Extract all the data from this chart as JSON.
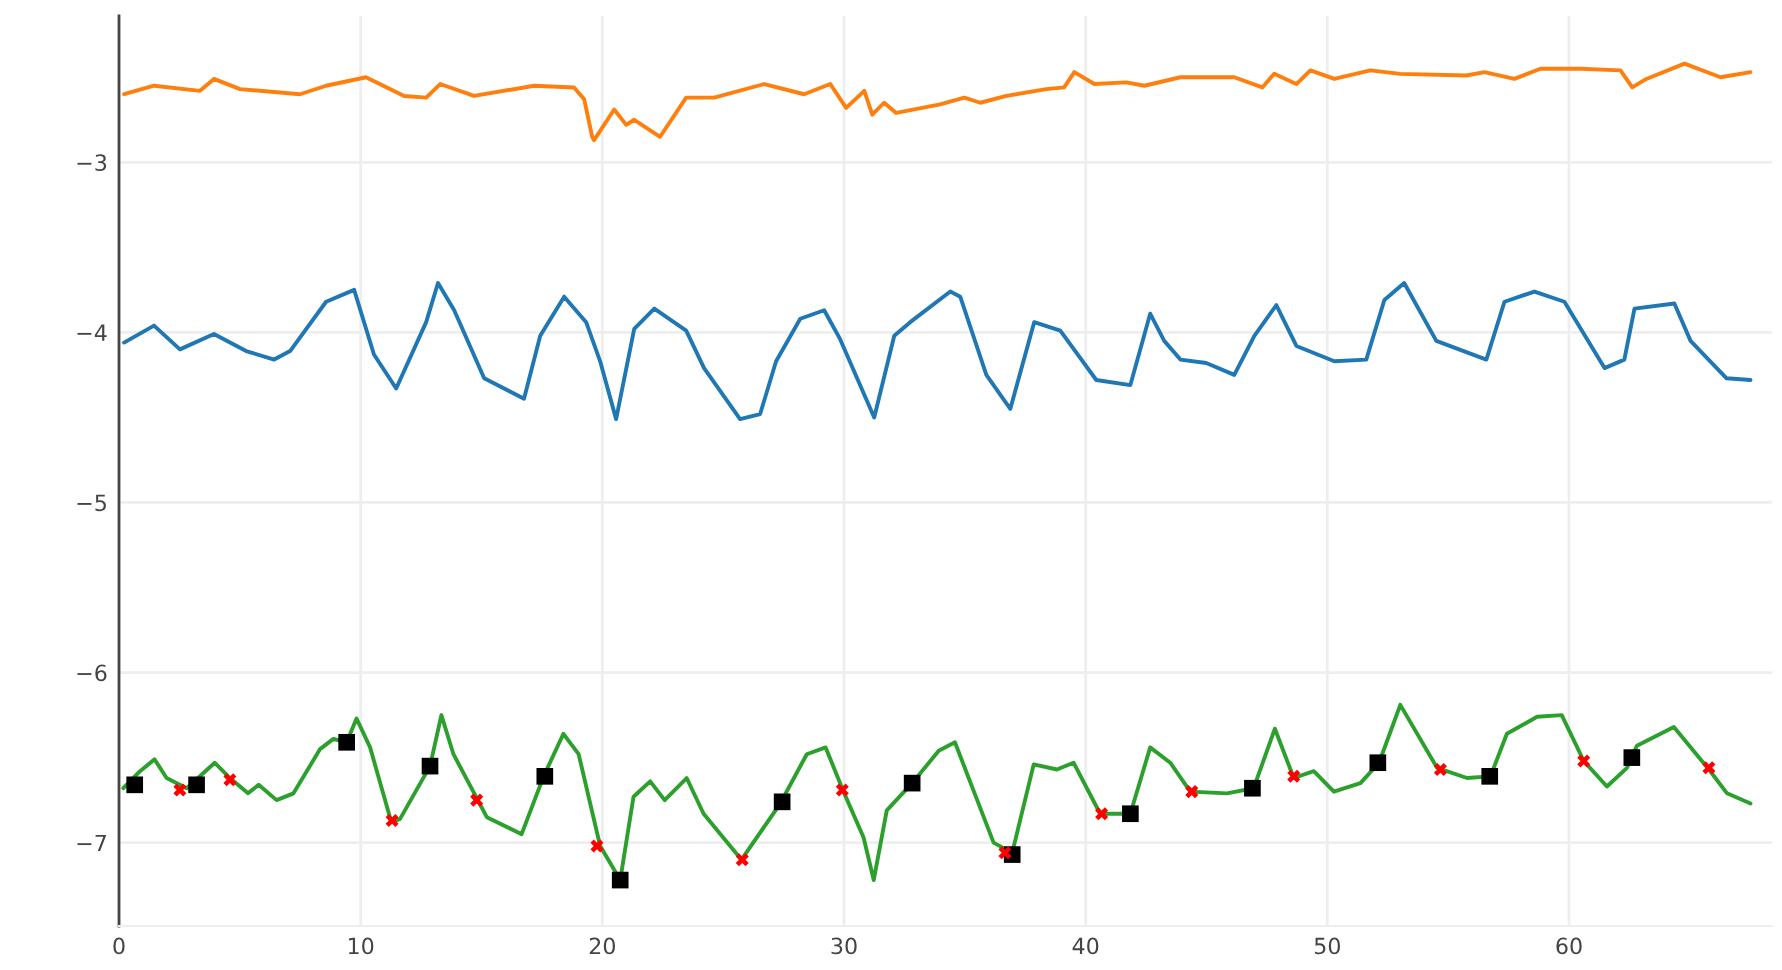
{
  "chart_data": {
    "type": "line",
    "xlim": [
      0,
      68.4
    ],
    "ylim": [
      -7.49,
      -2.14
    ],
    "xticks": [
      0,
      10,
      20,
      30,
      40,
      50,
      60
    ],
    "yticks": [
      {
        "value": -3,
        "label": "−3"
      },
      {
        "value": -4,
        "label": "−4"
      },
      {
        "value": -5,
        "label": "−5"
      },
      {
        "value": -6,
        "label": "−6"
      },
      {
        "value": -7,
        "label": "−7"
      }
    ],
    "grid": true,
    "line_style": "solid",
    "series": [
      {
        "color": "#ff7f0e",
        "x": [
          0.21,
          1.45,
          3.35,
          3.93,
          5.01,
          7.49,
          8.57,
          10.22,
          11.8,
          12.71,
          13.29,
          14.69,
          17.18,
          18.83,
          19.25,
          19.58,
          19.66,
          20.49,
          20.99,
          21.32,
          22.39,
          23.47,
          24.63,
          26.7,
          28.35,
          29.43,
          30.09,
          30.84,
          31.17,
          31.66,
          32.16,
          33.98,
          34.98,
          35.64,
          36.72,
          38.37,
          39.11,
          39.53,
          40.36,
          41.68,
          42.43,
          43.92,
          46.15,
          47.31,
          47.8,
          48.72,
          49.3,
          50.29,
          51.78,
          53.02,
          55.75,
          56.5,
          57.74,
          58.82,
          60.47,
          62.13,
          62.62,
          63.2,
          64.78,
          66.27,
          67.51
        ],
        "values": [
          -2.6,
          -2.55,
          -2.58,
          -2.51,
          -2.57,
          -2.6,
          -2.55,
          -2.5,
          -2.61,
          -2.62,
          -2.54,
          -2.61,
          -2.55,
          -2.56,
          -2.63,
          -2.85,
          -2.87,
          -2.69,
          -2.78,
          -2.75,
          -2.85,
          -2.62,
          -2.62,
          -2.54,
          -2.6,
          -2.54,
          -2.68,
          -2.58,
          -2.72,
          -2.65,
          -2.71,
          -2.66,
          -2.62,
          -2.65,
          -2.61,
          -2.57,
          -2.56,
          -2.47,
          -2.54,
          -2.53,
          -2.55,
          -2.5,
          -2.5,
          -2.56,
          -2.48,
          -2.54,
          -2.46,
          -2.51,
          -2.46,
          -2.48,
          -2.49,
          -2.47,
          -2.51,
          -2.45,
          -2.45,
          -2.46,
          -2.56,
          -2.51,
          -2.42,
          -2.5,
          -2.47
        ]
      },
      {
        "color": "#1f77b4",
        "x": [
          0.21,
          1.45,
          2.52,
          3.93,
          5.26,
          6.42,
          7.08,
          8.57,
          9.73,
          10.55,
          11.47,
          12.71,
          13.2,
          13.87,
          15.11,
          16.76,
          17.43,
          18.42,
          19.33,
          19.91,
          20.57,
          21.32,
          22.15,
          23.47,
          24.21,
          25.7,
          26.53,
          27.19,
          28.19,
          29.18,
          29.84,
          31.25,
          32.08,
          32.74,
          34.4,
          34.81,
          35.89,
          36.88,
          37.87,
          38.95,
          40.44,
          41.85,
          42.67,
          43.25,
          43.92,
          44.99,
          46.15,
          46.98,
          47.89,
          48.72,
          50.29,
          51.61,
          52.36,
          53.18,
          54.51,
          56.58,
          57.33,
          58.57,
          59.81,
          61.47,
          62.29,
          62.71,
          64.36,
          65.03,
          66.52,
          67.51
        ],
        "values": [
          -4.06,
          -3.96,
          -4.1,
          -4.01,
          -4.11,
          -4.16,
          -4.11,
          -3.82,
          -3.75,
          -4.13,
          -4.33,
          -3.94,
          -3.71,
          -3.87,
          -4.27,
          -4.39,
          -4.02,
          -3.79,
          -3.94,
          -4.17,
          -4.51,
          -3.98,
          -3.86,
          -3.99,
          -4.21,
          -4.51,
          -4.48,
          -4.17,
          -3.92,
          -3.87,
          -4.04,
          -4.5,
          -4.02,
          -3.94,
          -3.76,
          -3.79,
          -4.25,
          -4.45,
          -3.94,
          -3.99,
          -4.28,
          -4.31,
          -3.89,
          -4.05,
          -4.16,
          -4.18,
          -4.25,
          -4.02,
          -3.84,
          -4.08,
          -4.17,
          -4.16,
          -3.81,
          -3.71,
          -4.05,
          -4.16,
          -3.82,
          -3.76,
          -3.82,
          -4.21,
          -4.16,
          -3.86,
          -3.83,
          -4.05,
          -4.27,
          -4.28
        ]
      },
      {
        "color": "#2ca02c",
        "x": [
          0.18,
          0.87,
          1.47,
          1.97,
          2.8,
          3.96,
          4.59,
          5.34,
          5.78,
          6.52,
          7.22,
          8.32,
          8.87,
          9.42,
          9.83,
          10.39,
          11.27,
          11.63,
          12.87,
          13.34,
          13.84,
          15.22,
          16.66,
          17.57,
          18.39,
          19.02,
          19.91,
          20.74,
          21.29,
          21.98,
          22.58,
          23.49,
          24.19,
          25.76,
          27.36,
          28.46,
          29.24,
          29.98,
          30.81,
          31.23,
          31.77,
          32.82,
          33.92,
          34.59,
          36.19,
          36.96,
          37.85,
          38.81,
          39.5,
          40.6,
          41.85,
          42.67,
          43.5,
          44.33,
          45.84,
          46.95,
          47.83,
          48.61,
          49.44,
          50.27,
          51.37,
          52.14,
          53.02,
          54.54,
          55.78,
          56.75,
          57.43,
          58.68,
          59.7,
          60.61,
          61.57,
          62.4,
          62.81,
          64.34,
          65.79,
          66.54,
          67.51
        ],
        "values": [
          -6.68,
          -6.58,
          -6.51,
          -6.62,
          -6.68,
          -6.53,
          -6.62,
          -6.71,
          -6.66,
          -6.75,
          -6.71,
          -6.45,
          -6.39,
          -6.41,
          -6.27,
          -6.44,
          -6.88,
          -6.86,
          -6.55,
          -6.25,
          -6.48,
          -6.85,
          -6.95,
          -6.61,
          -6.36,
          -6.48,
          -7.02,
          -7.22,
          -6.73,
          -6.64,
          -6.75,
          -6.62,
          -6.83,
          -7.1,
          -6.77,
          -6.48,
          -6.44,
          -6.7,
          -6.97,
          -7.22,
          -6.81,
          -6.65,
          -6.46,
          -6.41,
          -7.0,
          -7.06,
          -6.54,
          -6.57,
          -6.53,
          -6.83,
          -6.83,
          -6.44,
          -6.53,
          -6.7,
          -6.71,
          -6.68,
          -6.33,
          -6.62,
          -6.58,
          -6.7,
          -6.65,
          -6.53,
          -6.19,
          -6.56,
          -6.62,
          -6.61,
          -6.36,
          -6.26,
          -6.25,
          -6.52,
          -6.67,
          -6.56,
          -6.43,
          -6.32,
          -6.57,
          -6.71,
          -6.77
        ]
      },
      {
        "type": "scatter",
        "marker": "square",
        "color": "#000000",
        "x": [
          0.65,
          3.21,
          9.42,
          12.87,
          17.62,
          20.74,
          27.44,
          32.82,
          36.96,
          41.85,
          46.9,
          52.09,
          56.72,
          62.6
        ],
        "values": [
          -6.66,
          -6.66,
          -6.41,
          -6.55,
          -6.61,
          -7.22,
          -6.76,
          -6.65,
          -7.07,
          -6.83,
          -6.68,
          -6.53,
          -6.61,
          -6.5
        ]
      },
      {
        "type": "scatter",
        "marker": "cross",
        "color": "#ff0000",
        "x": [
          2.52,
          4.59,
          11.3,
          14.8,
          19.78,
          25.79,
          29.93,
          36.66,
          40.66,
          44.39,
          48.61,
          54.68,
          60.61,
          65.79
        ],
        "values": [
          -6.69,
          -6.63,
          -6.87,
          -6.75,
          -7.02,
          -7.1,
          -6.69,
          -7.06,
          -6.83,
          -6.7,
          -6.61,
          -6.57,
          -6.52,
          -6.56
        ]
      }
    ]
  }
}
